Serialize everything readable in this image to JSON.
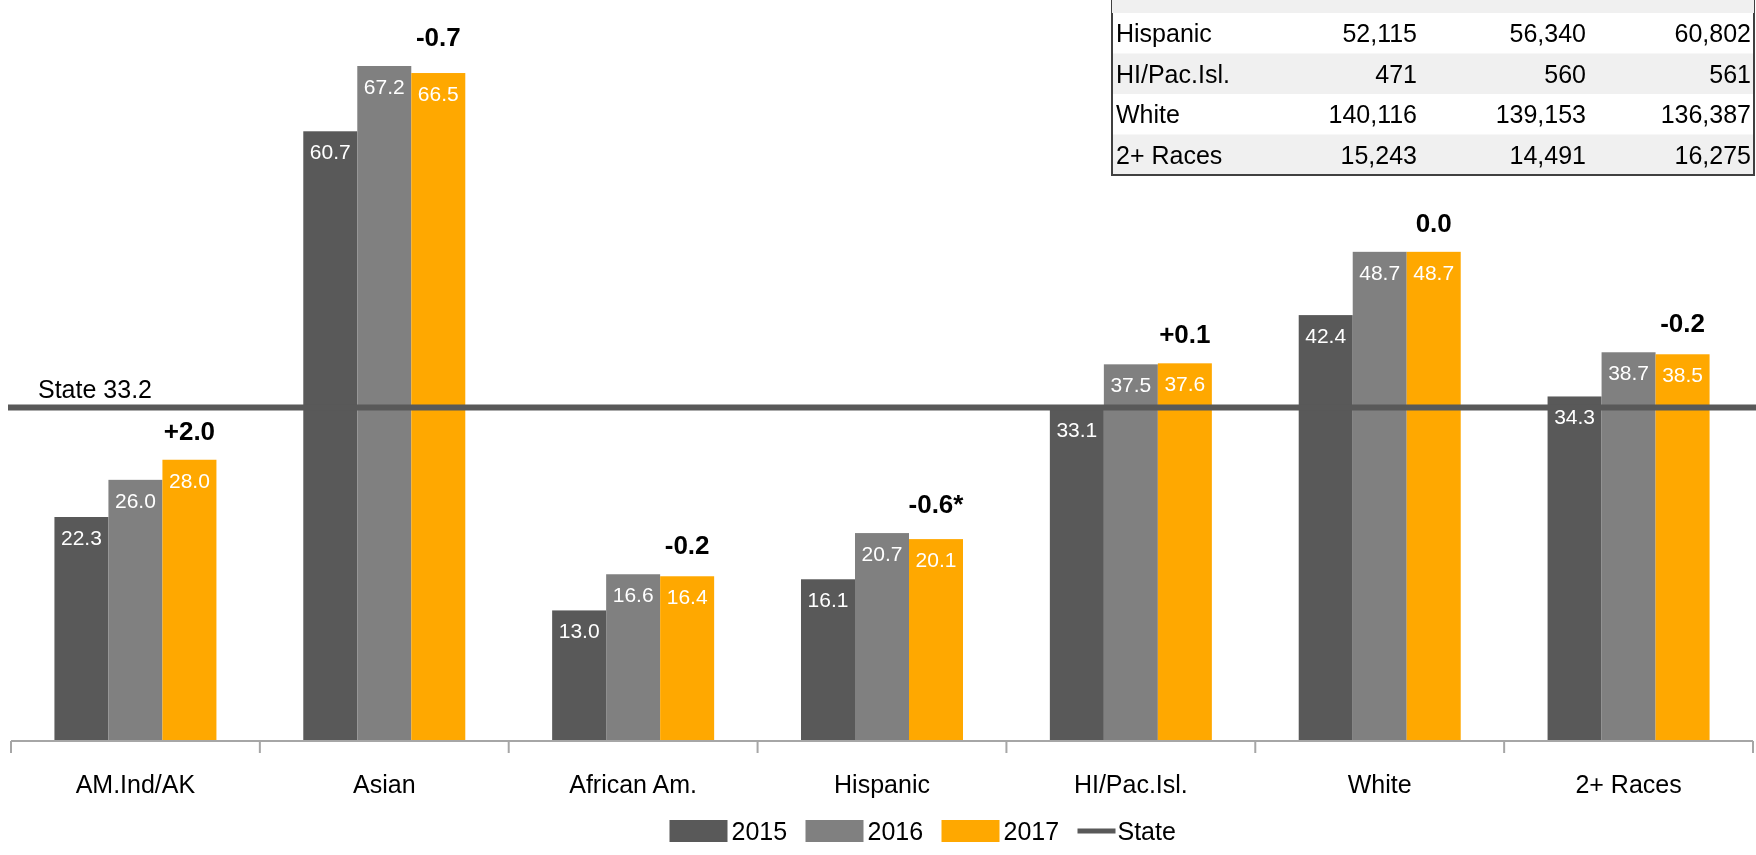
{
  "chart_data": {
    "type": "bar",
    "categories": [
      "AM.Ind/AK",
      "Asian",
      "African Am.",
      "Hispanic",
      "HI/Pac.Isl.",
      "White",
      "2+ Races"
    ],
    "series": [
      {
        "name": "2015",
        "color": "#595959",
        "values": [
          22.3,
          60.7,
          13.0,
          16.1,
          33.1,
          42.4,
          34.3
        ],
        "value_labels": [
          "22.3",
          "60.7",
          "13.0",
          "16.1",
          "33.1",
          "42.4",
          "34.3"
        ]
      },
      {
        "name": "2016",
        "color": "#808080",
        "values": [
          26.0,
          67.2,
          16.6,
          20.7,
          37.5,
          48.7,
          38.7
        ],
        "value_labels": [
          "26.0",
          "67.2",
          "16.6",
          "20.7",
          "37.5",
          "48.7",
          "38.7"
        ]
      },
      {
        "name": "2017",
        "color": "#ffa800",
        "values": [
          28.0,
          66.5,
          16.4,
          20.1,
          37.6,
          48.7,
          38.5
        ],
        "value_labels": [
          "28.0",
          "66.5",
          "16.4",
          "20.1",
          "37.6",
          "48.7",
          "38.5"
        ]
      }
    ],
    "legend": "bottom",
    "ref_lines": [
      {
        "axis": "y",
        "value": 33.2,
        "label": "State",
        "color": "#595959"
      }
    ],
    "annotations": [
      {
        "text": "State 33.2",
        "y": 33.2
      },
      "+2.0",
      "-0.7",
      "-0.2",
      "-0.6*",
      "+0.1",
      "0.0",
      "-0.2",
      "Hispanic",
      "52,115",
      "56,340",
      "60,802",
      "HI/Pac.Isl.",
      "471",
      "560",
      "561",
      "White",
      "140,116",
      "139,153",
      "136,387",
      "2+ Races",
      "15,243",
      "14,491",
      "16,275"
    ]
  }
}
